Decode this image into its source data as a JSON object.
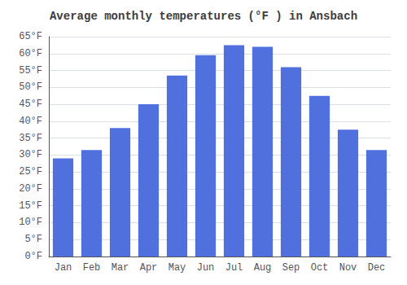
{
  "chart_data": {
    "type": "bar",
    "title": "Average monthly temperatures (°F ) in Ansbach",
    "categories": [
      "Jan",
      "Feb",
      "Mar",
      "Apr",
      "May",
      "Jun",
      "Jul",
      "Aug",
      "Sep",
      "Oct",
      "Nov",
      "Dec"
    ],
    "values": [
      29,
      31.5,
      38,
      45,
      53.5,
      59.5,
      62.5,
      62,
      56,
      47.5,
      37.5,
      31.5
    ],
    "ylim": [
      0,
      65
    ],
    "yticks": [
      {
        "value": 0,
        "label": "0°F"
      },
      {
        "value": 5,
        "label": "5°F"
      },
      {
        "value": 10,
        "label": "10°F"
      },
      {
        "value": 15,
        "label": "15°F"
      },
      {
        "value": 20,
        "label": "20°F"
      },
      {
        "value": 25,
        "label": "25°F"
      },
      {
        "value": 30,
        "label": "30°F"
      },
      {
        "value": 35,
        "label": "35°F"
      },
      {
        "value": 40,
        "label": "40°F"
      },
      {
        "value": 45,
        "label": "45°F"
      },
      {
        "value": 50,
        "label": "50°F"
      },
      {
        "value": 55,
        "label": "55°F"
      },
      {
        "value": 60,
        "label": "60°F"
      },
      {
        "value": 65,
        "label": "65°F"
      }
    ],
    "grid": true
  }
}
